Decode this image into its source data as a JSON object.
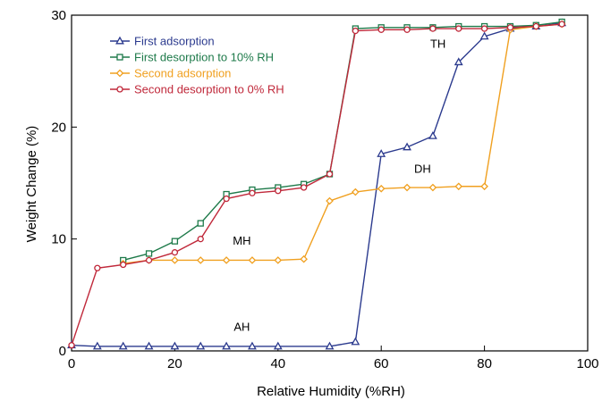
{
  "chart_data": {
    "type": "line",
    "title": "",
    "xlabel": "Relative Humidity (%RH)",
    "ylabel": "Weight Change (%)",
    "xlim": [
      0,
      100
    ],
    "ylim": [
      0,
      30
    ],
    "xticks": [
      0,
      20,
      40,
      60,
      80,
      100
    ],
    "yticks": [
      0,
      10,
      20,
      30
    ],
    "grid": false,
    "legend_position": "top-left",
    "series": [
      {
        "name": "First adsorption",
        "color": "#2b3a8e",
        "marker": "triangle",
        "points": [
          [
            0,
            0.5
          ],
          [
            5,
            0.4
          ],
          [
            10,
            0.4
          ],
          [
            15,
            0.4
          ],
          [
            20,
            0.4
          ],
          [
            25,
            0.4
          ],
          [
            30,
            0.4
          ],
          [
            35,
            0.4
          ],
          [
            40,
            0.4
          ],
          [
            50,
            0.4
          ],
          [
            55,
            0.8
          ],
          [
            60,
            17.6
          ],
          [
            65,
            18.2
          ],
          [
            70,
            19.2
          ],
          [
            75,
            25.8
          ],
          [
            80,
            28.1
          ],
          [
            85,
            28.8
          ],
          [
            90,
            29.0
          ],
          [
            95,
            29.3
          ]
        ]
      },
      {
        "name": "First desorption to 10% RH",
        "color": "#1e7a4a",
        "marker": "square",
        "points": [
          [
            95,
            29.4
          ],
          [
            90,
            29.1
          ],
          [
            85,
            29.0
          ],
          [
            80,
            29.0
          ],
          [
            75,
            29.0
          ],
          [
            70,
            28.9
          ],
          [
            65,
            28.9
          ],
          [
            60,
            28.9
          ],
          [
            55,
            28.8
          ],
          [
            50,
            15.8
          ],
          [
            45,
            14.9
          ],
          [
            40,
            14.6
          ],
          [
            35,
            14.4
          ],
          [
            30,
            14.0
          ],
          [
            25,
            11.4
          ],
          [
            20,
            9.8
          ],
          [
            15,
            8.7
          ],
          [
            10,
            8.1
          ]
        ]
      },
      {
        "name": "Second adsorption",
        "color": "#f0a020",
        "marker": "diamond",
        "points": [
          [
            10,
            7.8
          ],
          [
            15,
            8.1
          ],
          [
            20,
            8.1
          ],
          [
            25,
            8.1
          ],
          [
            30,
            8.1
          ],
          [
            35,
            8.1
          ],
          [
            40,
            8.1
          ],
          [
            45,
            8.2
          ],
          [
            50,
            13.4
          ],
          [
            55,
            14.2
          ],
          [
            60,
            14.5
          ],
          [
            65,
            14.6
          ],
          [
            70,
            14.6
          ],
          [
            75,
            14.7
          ],
          [
            80,
            14.7
          ],
          [
            85,
            28.7
          ],
          [
            90,
            29.0
          ],
          [
            95,
            29.2
          ]
        ]
      },
      {
        "name": "Second desorption to 0% RH",
        "color": "#c0283a",
        "marker": "circle",
        "points": [
          [
            95,
            29.2
          ],
          [
            90,
            29.0
          ],
          [
            85,
            28.9
          ],
          [
            80,
            28.8
          ],
          [
            75,
            28.8
          ],
          [
            70,
            28.8
          ],
          [
            65,
            28.7
          ],
          [
            60,
            28.7
          ],
          [
            55,
            28.6
          ],
          [
            50,
            15.8
          ],
          [
            45,
            14.6
          ],
          [
            40,
            14.3
          ],
          [
            35,
            14.1
          ],
          [
            30,
            13.6
          ],
          [
            25,
            10.0
          ],
          [
            20,
            8.8
          ],
          [
            15,
            8.1
          ],
          [
            10,
            7.7
          ],
          [
            5,
            7.4
          ],
          [
            0,
            0.5
          ]
        ]
      }
    ],
    "annotations": [
      {
        "text": "TH",
        "x": 71,
        "y": 27.1
      },
      {
        "text": "DH",
        "x": 68,
        "y": 15.9
      },
      {
        "text": "MH",
        "x": 33,
        "y": 9.5
      },
      {
        "text": "AH",
        "x": 33,
        "y": 1.8
      }
    ]
  }
}
